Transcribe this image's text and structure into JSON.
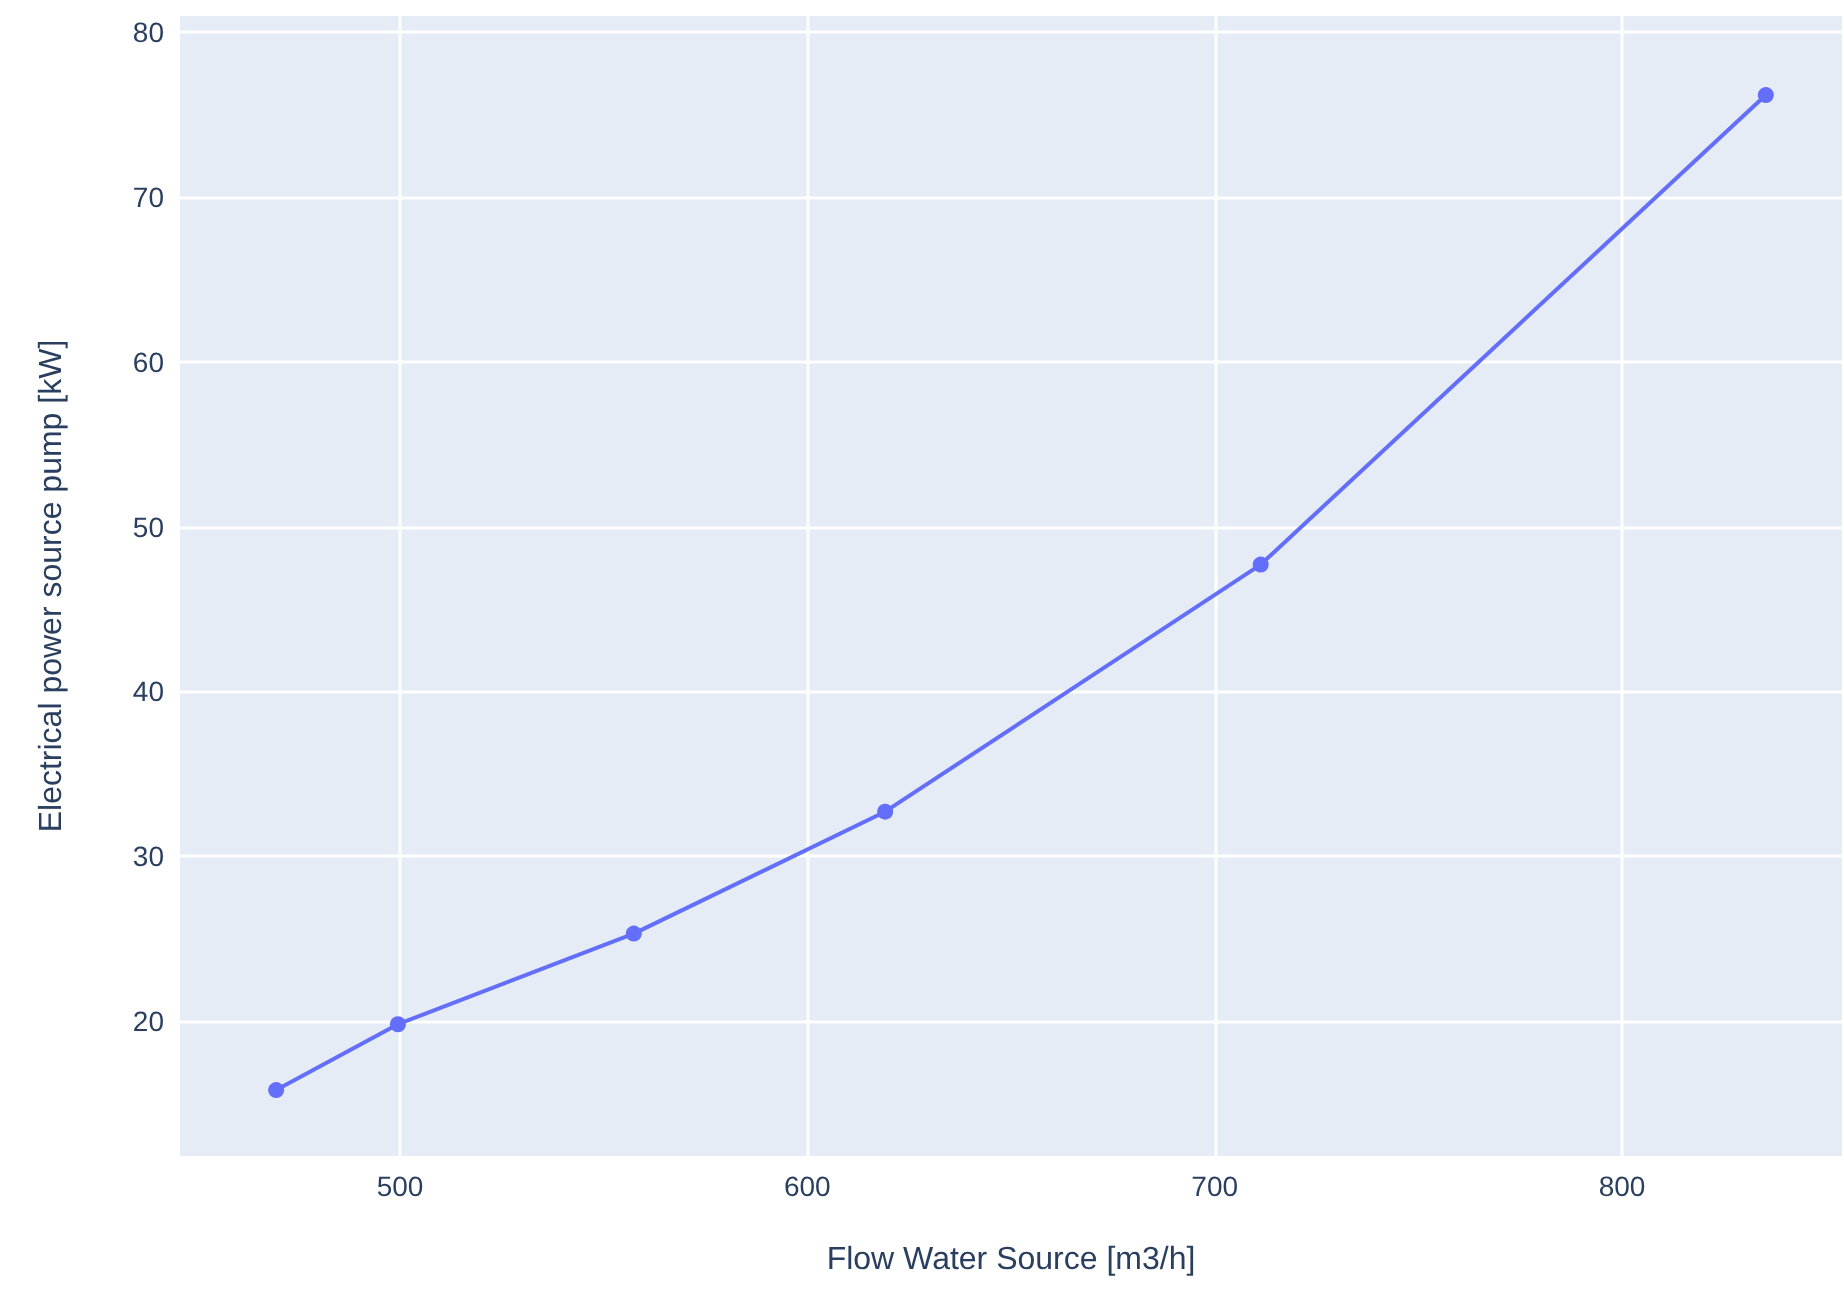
{
  "chart_data": {
    "type": "line",
    "xlabel": "Flow Water Source [m3/h]",
    "ylabel": "Electrical power source pump [kW]",
    "x": [
      469.6,
      499.5,
      557.4,
      619.1,
      711.3,
      835.3
    ],
    "series": [
      {
        "color": "#636efa",
        "values": [
          15.8,
          19.8,
          25.3,
          32.7,
          47.7,
          76.2
        ]
      }
    ],
    "xlim": [
      446,
      854
    ],
    "xticks": [
      500,
      600,
      700,
      800
    ],
    "ylim": [
      11.8,
      81
    ],
    "yticks": [
      20,
      30,
      40,
      50,
      60,
      70,
      80
    ],
    "grid": true,
    "marker": "circle",
    "line_style": "solid"
  }
}
